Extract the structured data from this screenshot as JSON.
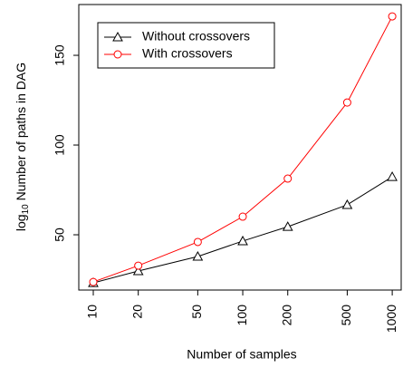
{
  "chart_data": {
    "type": "line",
    "x_label": "Number of samples",
    "y_label": [
      "log",
      "10",
      " Number of paths in DAG"
    ],
    "x": [
      10,
      20,
      50,
      100,
      200,
      500,
      1000
    ],
    "series": [
      {
        "name": "Without crossovers",
        "color": "#000000",
        "marker": "triangle",
        "values": [
          23.2,
          29.8,
          37.9,
          46.5,
          54.5,
          66.7,
          82.3
        ]
      },
      {
        "name": "With crossovers",
        "color": "#ff0000",
        "marker": "circle",
        "values": [
          23.7,
          32.8,
          46,
          60.1,
          81.3,
          123.7,
          171.7
        ]
      }
    ],
    "xscale": "log",
    "xlim": [
      8,
      1148
    ],
    "xticks": [
      10,
      20,
      50,
      100,
      200,
      500,
      1000
    ],
    "ylim": [
      19.2,
      178.3
    ],
    "yticks": [
      50,
      100,
      150
    ],
    "grid": false,
    "legend": "top-left"
  }
}
